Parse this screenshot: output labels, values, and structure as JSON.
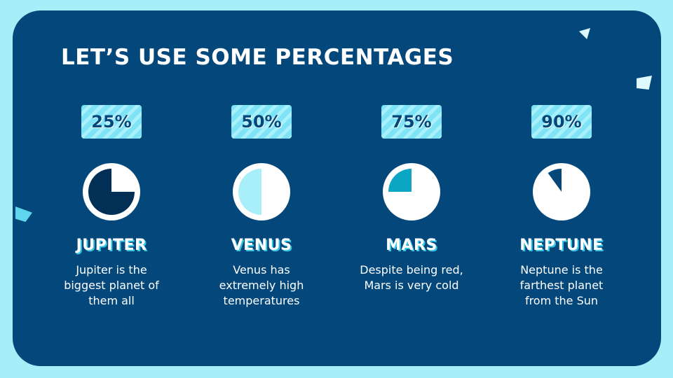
{
  "title": "LET’S USE SOME PERCENTAGES",
  "colors": {
    "background": "#a8eef8",
    "panel": "#03477b",
    "pie_base": "#ffffff"
  },
  "items": [
    {
      "percent": "25%",
      "fill_fraction": 0.75,
      "fill_color": "#022f55",
      "name": "JUPITER",
      "description": "Jupiter is the biggest planet of them all"
    },
    {
      "percent": "50%",
      "fill_fraction": 0.5,
      "fill_color": "#a8eff9",
      "name": "VENUS",
      "description": "Venus has extremely high temperatures"
    },
    {
      "percent": "75%",
      "fill_fraction": 0.25,
      "fill_color": "#0aa6c4",
      "name": "MARS",
      "description": "Despite being red, Mars is very cold"
    },
    {
      "percent": "90%",
      "fill_fraction": 0.1,
      "fill_color": "#03477b",
      "name": "NEPTUNE",
      "description": "Neptune is the farthest planet from the Sun"
    }
  ]
}
